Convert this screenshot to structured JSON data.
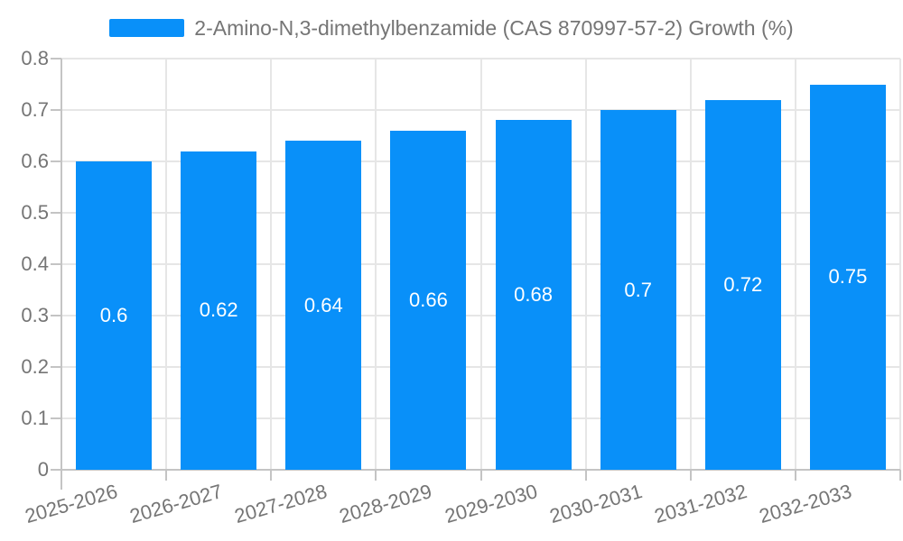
{
  "legend": {
    "label": "2-Amino-N,3-dimethylbenzamide (CAS 870997-57-2) Growth (%)"
  },
  "chart_data": {
    "type": "bar",
    "title": "2-Amino-N,3-dimethylbenzamide (CAS 870997-57-2) Growth (%)",
    "categories": [
      "2025-2026",
      "2026-2027",
      "2027-2028",
      "2028-2029",
      "2029-2030",
      "2030-2031",
      "2031-2032",
      "2032-2033"
    ],
    "values": [
      0.6,
      0.62,
      0.64,
      0.66,
      0.68,
      0.7,
      0.72,
      0.75
    ],
    "bar_labels": [
      "0.6",
      "0.62",
      "0.64",
      "0.66",
      "0.68",
      "0.7",
      "0.72",
      "0.75"
    ],
    "xlabel": "",
    "ylabel": "",
    "ylim": [
      0,
      0.8
    ],
    "yticks": [
      "0",
      "0.1",
      "0.2",
      "0.3",
      "0.4",
      "0.5",
      "0.6",
      "0.7",
      "0.8"
    ],
    "grid": true,
    "legend_position": "top-center",
    "colors": {
      "bar": "#0990f9",
      "bar_label": "#ffffff",
      "axis_text": "#757575",
      "grid_line": "#e6e6e6",
      "axis_line": "#c4c4c4",
      "background": "#ffffff"
    }
  }
}
